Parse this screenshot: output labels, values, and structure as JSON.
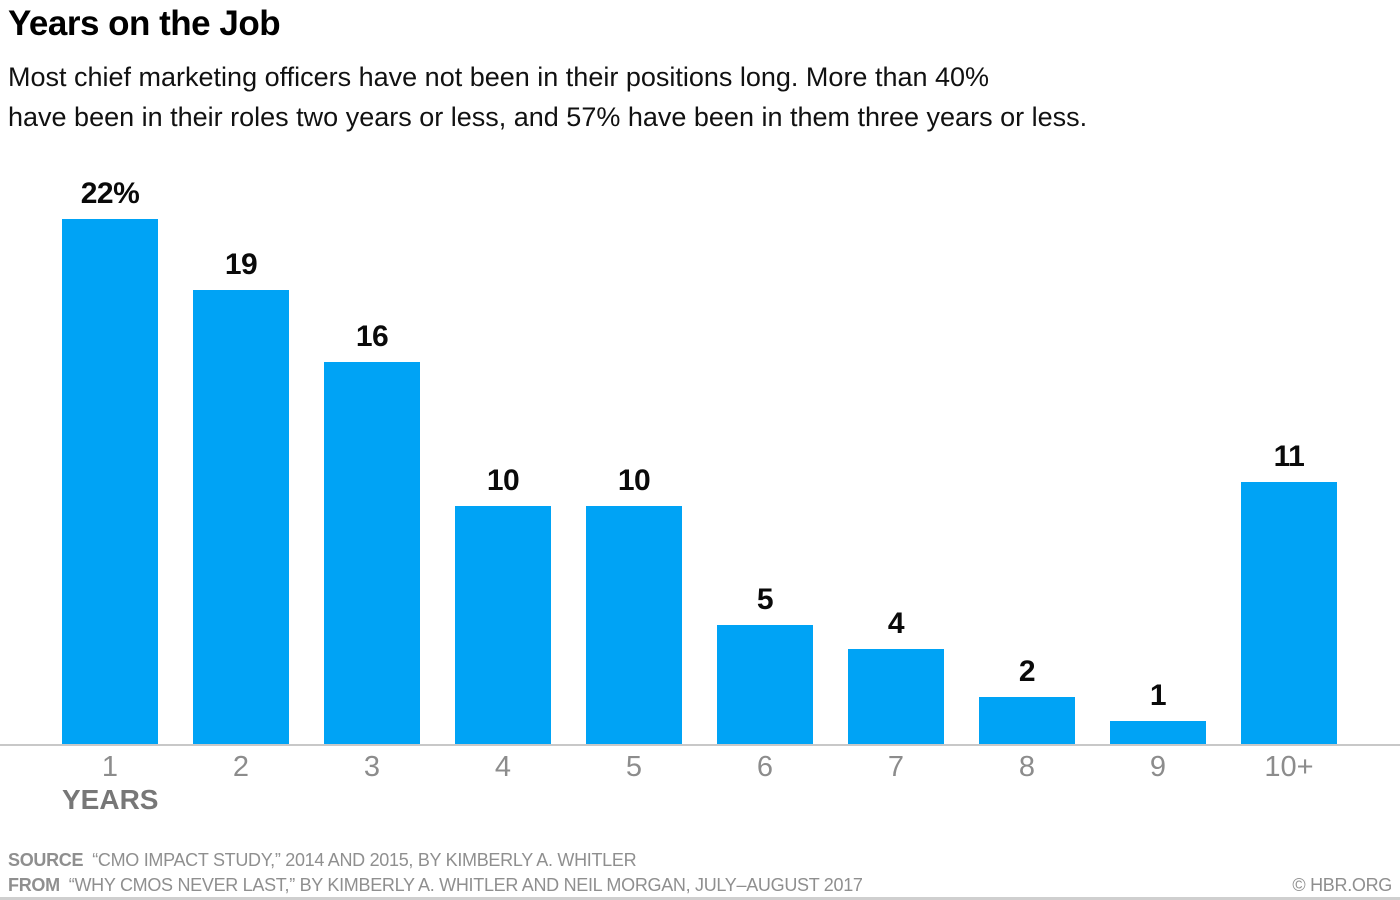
{
  "header": {
    "title": "Years on the Job",
    "subtitle_line1": "Most chief marketing officers have not been in their positions long. More than 40%",
    "subtitle_line2": "have been in their roles two years or less, and 57% have been in them three years or less."
  },
  "chart_data": {
    "type": "bar",
    "categories": [
      "1",
      "2",
      "3",
      "4",
      "5",
      "6",
      "7",
      "8",
      "9",
      "10+"
    ],
    "values": [
      22,
      19,
      16,
      10,
      10,
      5,
      4,
      2,
      1,
      11
    ],
    "value_labels": [
      "22%",
      "19",
      "16",
      "10",
      "10",
      "5",
      "4",
      "2",
      "1",
      "11"
    ],
    "title": "Years on the Job",
    "xlabel": "YEARS",
    "ylabel": "",
    "ylim": [
      0,
      24
    ],
    "grid": false,
    "legend": "none",
    "bar_color": "#00a3f5",
    "value_label_color": "#0a0a0a",
    "tick_label_color": "#8c8c8c"
  },
  "footer": {
    "source_label": "SOURCE",
    "source_text": "“CMO IMPACT STUDY,” 2014 AND 2015, BY KIMBERLY A. WHITLER",
    "from_label": "FROM",
    "from_text": "“WHY CMOS NEVER LAST,” BY KIMBERLY A. WHITLER AND NEIL MORGAN, JULY–AUGUST 2017",
    "copyright": "© HBR.ORG"
  }
}
